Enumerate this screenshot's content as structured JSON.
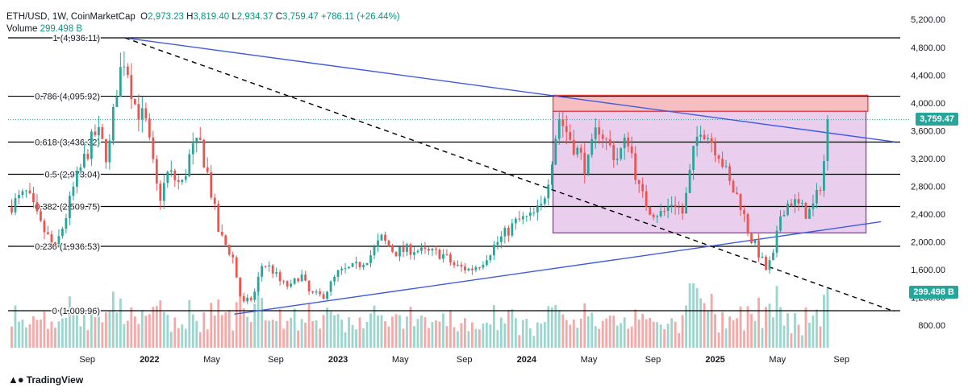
{
  "header": {
    "symbol": "ETH/USD, 1W, CoinMarketCap",
    "open_key": "O",
    "open": "2,973.23",
    "high_key": "H",
    "high": "3,819.40",
    "low_key": "L",
    "low": "2,934.37",
    "close_key": "C",
    "close": "3,759.47",
    "change": "+786.11 (+26.44%)",
    "volume_label": "Volume",
    "volume": "299.498 B"
  },
  "branding": {
    "name": "TradingView",
    "logo": "tradingview-logo"
  },
  "colors": {
    "up": "#26a69a",
    "down": "#ef5350",
    "vol_up": "#9ad6ce",
    "vol_down": "#f6a7a6",
    "trend_blue": "#3d5ce0",
    "box_fill": "#e1bee7",
    "box_border": "#9c27b0",
    "res_fill": "#f5b3b5",
    "res_border": "#e53935"
  },
  "chart_data": {
    "type": "candlestick",
    "ylim": [
      700,
      5300
    ],
    "y_ticks": [
      "5,200.00",
      "4,800.00",
      "4,400.00",
      "4,000.00",
      "3,600.00",
      "3,200.00",
      "2,800.00",
      "2,400.00",
      "2,000.00",
      "1,600.00",
      "1,200.00",
      "800.00"
    ],
    "y_tick_values": [
      5200,
      4800,
      4400,
      4000,
      3600,
      3200,
      2800,
      2400,
      2000,
      1600,
      1200,
      800
    ],
    "x_labels": [
      {
        "label": "Sep",
        "t": 2021.67
      },
      {
        "label": "2022",
        "t": 2022.0
      },
      {
        "label": "May",
        "t": 2022.33
      },
      {
        "label": "Sep",
        "t": 2022.67
      },
      {
        "label": "2023",
        "t": 2023.0
      },
      {
        "label": "May",
        "t": 2023.33
      },
      {
        "label": "Sep",
        "t": 2023.67
      },
      {
        "label": "2024",
        "t": 2024.0
      },
      {
        "label": "May",
        "t": 2024.33
      },
      {
        "label": "Sep",
        "t": 2024.67
      },
      {
        "label": "2025",
        "t": 2025.0
      },
      {
        "label": "May",
        "t": 2025.33
      },
      {
        "label": "Sep",
        "t": 2025.67
      }
    ],
    "fib_levels": [
      {
        "ratio": "1",
        "price": 4936.11,
        "label": "1 (4,936.11)"
      },
      {
        "ratio": "0.786",
        "price": 4095.92,
        "label": "0.786 (4,095.92)"
      },
      {
        "ratio": "0.618",
        "price": 3436.32,
        "label": "0.618 (3,436.32)"
      },
      {
        "ratio": "0.5",
        "price": 2973.04,
        "label": "0.5 (2,973.04)"
      },
      {
        "ratio": "0.382",
        "price": 2509.75,
        "label": "0.382 (2,509.75)"
      },
      {
        "ratio": "0.236",
        "price": 1936.53,
        "label": "0.236 (1,936.53)"
      },
      {
        "ratio": "0",
        "price": 1009.96,
        "label": "0 (1,009.96)"
      }
    ],
    "last_price": {
      "value": 3759.47,
      "label": "3,759.47"
    },
    "last_volume": {
      "label": "299.498 B"
    },
    "trendlines": [
      {
        "name": "upper-trendline",
        "style": "solid",
        "from": {
          "t": 2021.87,
          "p": 4936
        },
        "to": {
          "t": 2025.95,
          "p": 3440
        }
      },
      {
        "name": "lower-trendline",
        "style": "solid",
        "from": {
          "t": 2022.45,
          "p": 960
        },
        "to": {
          "t": 2025.88,
          "p": 2290
        }
      },
      {
        "name": "diagonal-dashed",
        "style": "dashed",
        "from": {
          "t": 2021.87,
          "p": 4936
        },
        "to": {
          "t": 2025.95,
          "p": 1000
        }
      }
    ],
    "range_box": {
      "t0": 2024.14,
      "t1": 2025.8,
      "p_low": 2130,
      "p_high": 3880
    },
    "resistance_zone": {
      "t0": 2024.14,
      "t1": 2025.81,
      "p_low": 3880,
      "p_high": 4110
    },
    "price_path": [
      [
        2021.25,
        2500
      ],
      [
        2021.35,
        2700
      ],
      [
        2021.42,
        2250
      ],
      [
        2021.5,
        1900
      ],
      [
        2021.55,
        2300
      ],
      [
        2021.6,
        2800
      ],
      [
        2021.67,
        3300
      ],
      [
        2021.72,
        3600
      ],
      [
        2021.78,
        3200
      ],
      [
        2021.83,
        4300
      ],
      [
        2021.87,
        4700
      ],
      [
        2021.92,
        4000
      ],
      [
        2021.98,
        3700
      ],
      [
        2022.05,
        2600
      ],
      [
        2022.1,
        3000
      ],
      [
        2022.17,
        2800
      ],
      [
        2022.22,
        3300
      ],
      [
        2022.27,
        3400
      ],
      [
        2022.31,
        2950
      ],
      [
        2022.37,
        2100
      ],
      [
        2022.44,
        1800
      ],
      [
        2022.49,
        1100
      ],
      [
        2022.55,
        1200
      ],
      [
        2022.6,
        1700
      ],
      [
        2022.65,
        1600
      ],
      [
        2022.7,
        1400
      ],
      [
        2022.75,
        1350
      ],
      [
        2022.8,
        1550
      ],
      [
        2022.85,
        1250
      ],
      [
        2022.92,
        1220
      ],
      [
        2023.0,
        1550
      ],
      [
        2023.05,
        1600
      ],
      [
        2023.1,
        1650
      ],
      [
        2023.17,
        1800
      ],
      [
        2023.23,
        2050
      ],
      [
        2023.3,
        1850
      ],
      [
        2023.4,
        1900
      ],
      [
        2023.45,
        1850
      ],
      [
        2023.55,
        1830
      ],
      [
        2023.62,
        1650
      ],
      [
        2023.7,
        1600
      ],
      [
        2023.76,
        1700
      ],
      [
        2023.83,
        1950
      ],
      [
        2023.88,
        2100
      ],
      [
        2023.95,
        2300
      ],
      [
        2024.02,
        2350
      ],
      [
        2024.08,
        2500
      ],
      [
        2024.12,
        3000
      ],
      [
        2024.17,
        3800
      ],
      [
        2024.22,
        3550
      ],
      [
        2024.27,
        3300
      ],
      [
        2024.32,
        3050
      ],
      [
        2024.38,
        3700
      ],
      [
        2024.42,
        3450
      ],
      [
        2024.48,
        3200
      ],
      [
        2024.54,
        3500
      ],
      [
        2024.6,
        2700
      ],
      [
        2024.66,
        2450
      ],
      [
        2024.72,
        2400
      ],
      [
        2024.78,
        2600
      ],
      [
        2024.83,
        2400
      ],
      [
        2024.88,
        3200
      ],
      [
        2024.92,
        3700
      ],
      [
        2024.97,
        3500
      ],
      [
        2025.02,
        3300
      ],
      [
        2025.08,
        2800
      ],
      [
        2025.13,
        2600
      ],
      [
        2025.18,
        2100
      ],
      [
        2025.22,
        1900
      ],
      [
        2025.27,
        1600
      ],
      [
        2025.31,
        1800
      ],
      [
        2025.35,
        2450
      ],
      [
        2025.4,
        2600
      ],
      [
        2025.45,
        2500
      ],
      [
        2025.49,
        2400
      ],
      [
        2025.53,
        2550
      ],
      [
        2025.57,
        2980
      ],
      [
        2025.6,
        3760
      ]
    ]
  }
}
